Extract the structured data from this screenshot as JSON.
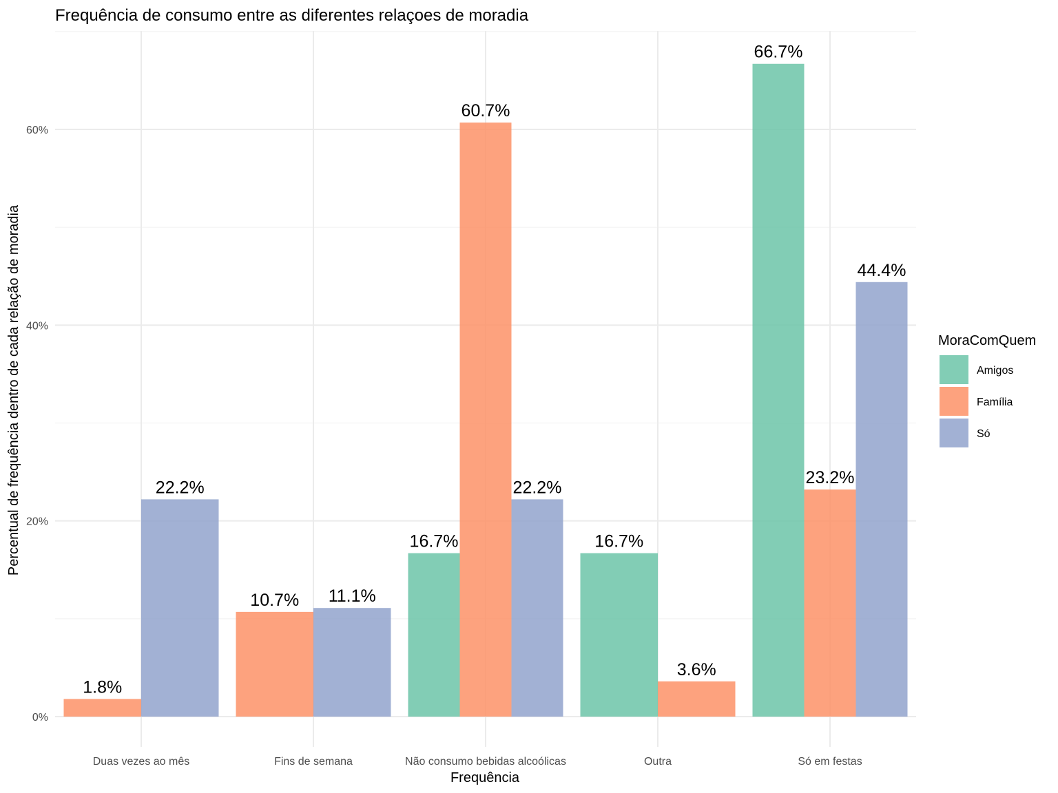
{
  "chart_data": {
    "type": "bar",
    "title": "Frequência de consumo entre as diferentes relaçoes de moradia",
    "xlabel": "Frequência",
    "ylabel": "Percentual de frequência dentro de cada relação de moradia",
    "categories": [
      "Duas vezes ao mês",
      "Fins de semana",
      "Não consumo bebidas alcoólicas",
      "Outra",
      "Só em festas"
    ],
    "ylim": [
      0,
      70
    ],
    "y_ticks": [
      0,
      20,
      40,
      60
    ],
    "y_tick_labels": [
      "0%",
      "20%",
      "40%",
      "60%"
    ],
    "grid": true,
    "legend": {
      "title": "MoraComQuem",
      "position": "right"
    },
    "series": [
      {
        "name": "Amigos",
        "color": "#66c2a5",
        "values": [
          null,
          null,
          16.7,
          16.7,
          66.7
        ]
      },
      {
        "name": "Família",
        "color": "#fc8d62",
        "values": [
          1.8,
          10.7,
          60.7,
          3.6,
          23.2
        ]
      },
      {
        "name": "Só",
        "color": "#8da0cb",
        "values": [
          22.2,
          11.1,
          22.2,
          null,
          44.4
        ]
      }
    ],
    "data_labels": [
      [
        null,
        null,
        "16.7%",
        "16.7%",
        "66.7%"
      ],
      [
        "1.8%",
        "10.7%",
        "60.7%",
        "3.6%",
        "23.2%"
      ],
      [
        "22.2%",
        "11.1%",
        "22.2%",
        null,
        "44.4%"
      ]
    ]
  }
}
